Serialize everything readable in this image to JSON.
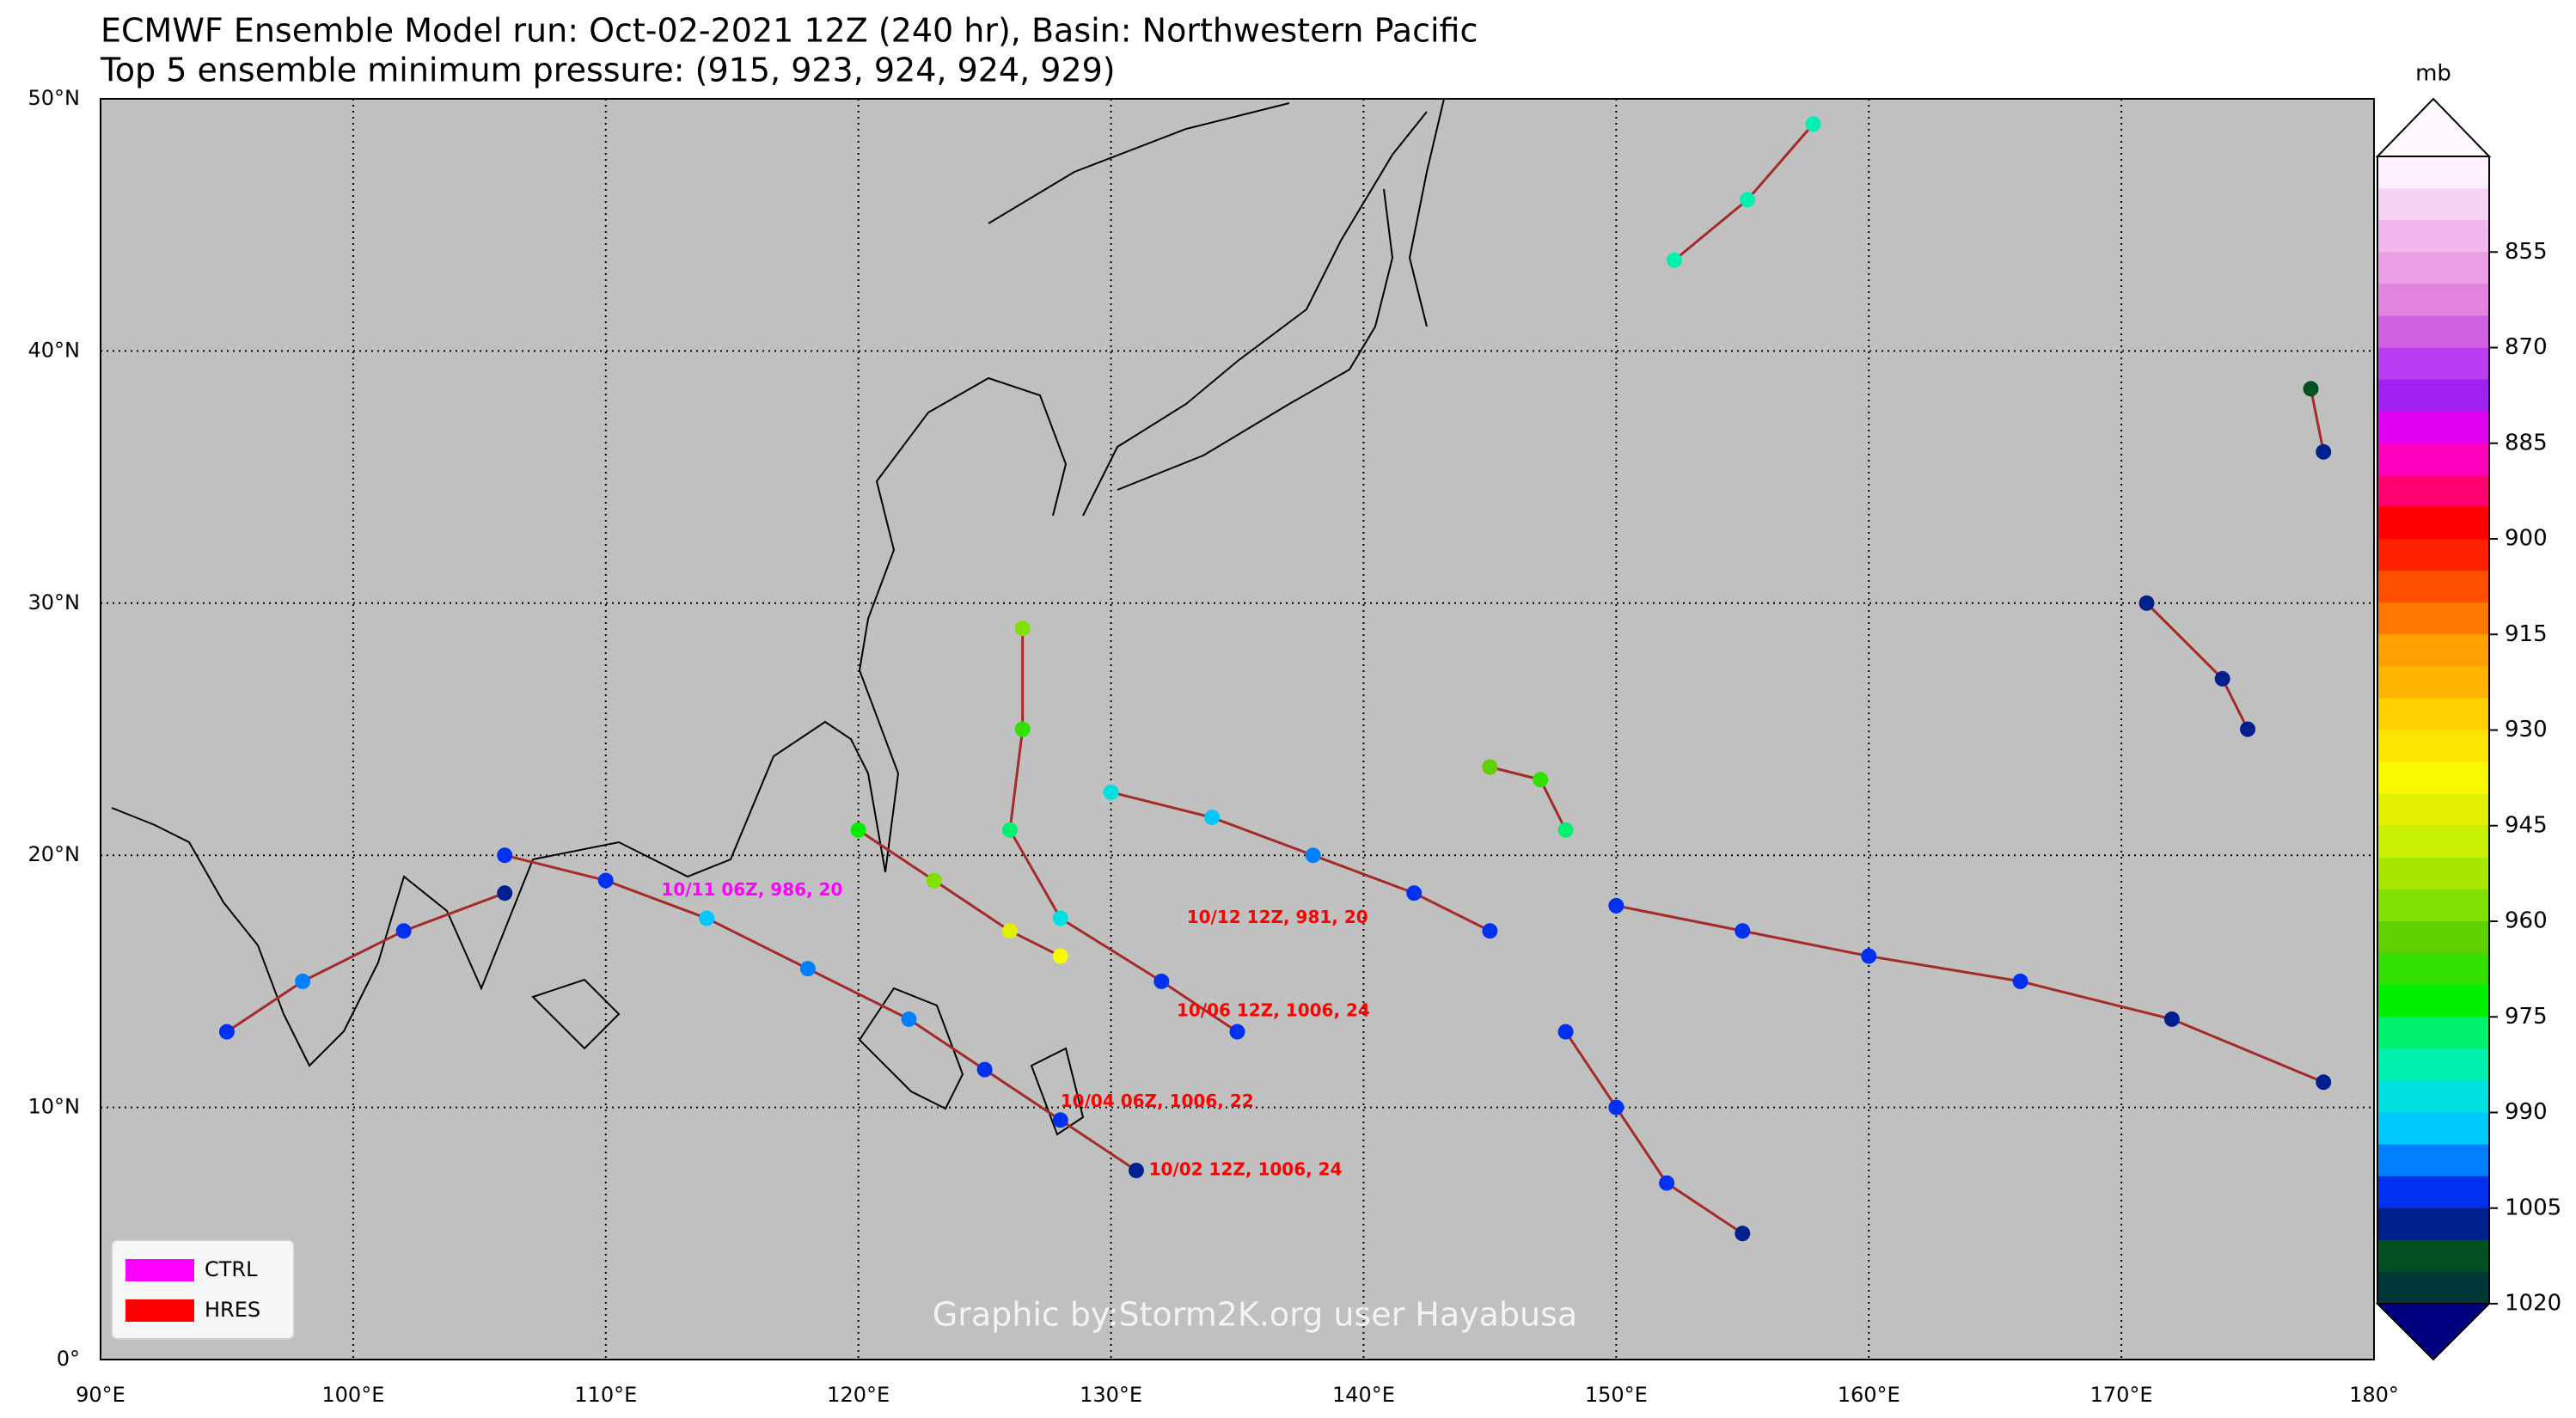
{
  "title": "ECMWF Ensemble Model run: Oct-02-2021 12Z (240 hr), Basin: Northwestern Pacific",
  "subtitle": "Top 5 ensemble minimum pressure: (915, 923, 924, 924, 929)",
  "watermark": "Graphic by:Storm2K.org user Hayabusa",
  "map": {
    "xlim": [
      90,
      180
    ],
    "ylim": [
      0,
      50
    ],
    "xticks": [
      {
        "value": 90,
        "label": "90°E"
      },
      {
        "value": 100,
        "label": "100°E"
      },
      {
        "value": 110,
        "label": "110°E"
      },
      {
        "value": 120,
        "label": "120°E"
      },
      {
        "value": 130,
        "label": "130°E"
      },
      {
        "value": 140,
        "label": "140°E"
      },
      {
        "value": 150,
        "label": "150°E"
      },
      {
        "value": 160,
        "label": "160°E"
      },
      {
        "value": 170,
        "label": "170°E"
      },
      {
        "value": 180,
        "label": "180°"
      }
    ],
    "yticks": [
      {
        "value": 0,
        "label": "0°"
      },
      {
        "value": 10,
        "label": "10°N"
      },
      {
        "value": 20,
        "label": "20°N"
      },
      {
        "value": 30,
        "label": "30°N"
      },
      {
        "value": 40,
        "label": "40°N"
      },
      {
        "value": 50,
        "label": "50°N"
      }
    ],
    "track_color": "#a52a2a",
    "tracks": [
      [
        [
          152.3,
          43.6,
          982
        ],
        [
          155.2,
          46.0,
          982
        ],
        [
          157.8,
          49.0,
          982
        ]
      ],
      [
        [
          131,
          7.5,
          1006
        ],
        [
          128,
          9.5,
          1004
        ],
        [
          125,
          11.5,
          1000
        ],
        [
          122,
          13.5,
          998
        ],
        [
          118,
          15.5,
          996
        ],
        [
          114,
          17.5,
          994
        ],
        [
          110,
          19,
          1000
        ],
        [
          106,
          20,
          1004
        ]
      ],
      [
        [
          135,
          13,
          1004
        ],
        [
          132,
          15,
          1000
        ],
        [
          128,
          17.5,
          985
        ],
        [
          126,
          21,
          975
        ],
        [
          126.5,
          25,
          965
        ],
        [
          126.5,
          29,
          955
        ]
      ],
      [
        [
          145,
          17,
          1004
        ],
        [
          142,
          18.5,
          1000
        ],
        [
          138,
          20,
          995
        ],
        [
          134,
          21.5,
          990
        ],
        [
          130,
          22.5,
          986
        ]
      ],
      [
        [
          145,
          23.5,
          962
        ],
        [
          147,
          23,
          965
        ],
        [
          148,
          21,
          975
        ]
      ],
      [
        [
          178,
          11,
          1006
        ],
        [
          172,
          13.5,
          1006
        ],
        [
          166,
          15,
          1004
        ],
        [
          160,
          16,
          1002
        ],
        [
          155,
          17,
          1000
        ],
        [
          150,
          18,
          1004
        ]
      ],
      [
        [
          178,
          36,
          1008
        ],
        [
          177.5,
          38.5,
          1010
        ]
      ],
      [
        [
          95,
          13,
          1000
        ],
        [
          98,
          15,
          996
        ],
        [
          102,
          17,
          1004
        ],
        [
          106,
          18.5,
          1006
        ]
      ],
      [
        [
          171,
          30,
          1008
        ],
        [
          174,
          27,
          1008
        ],
        [
          175,
          25,
          1008
        ]
      ],
      [
        [
          155,
          5,
          1006
        ],
        [
          152,
          7,
          1004
        ],
        [
          150,
          10,
          1002
        ],
        [
          148,
          13,
          1000
        ]
      ],
      [
        [
          120,
          21,
          970
        ],
        [
          123,
          19,
          955
        ],
        [
          126,
          17,
          940
        ],
        [
          128,
          16,
          935
        ]
      ]
    ],
    "annotations": [
      {
        "text": "10/02 12Z, 1006, 24",
        "lon": 131.5,
        "lat": 7.5,
        "color": "#ff0000"
      },
      {
        "text": "10/04 06Z, 1006, 22",
        "lon": 128,
        "lat": 10.2,
        "color": "#ff0000"
      },
      {
        "text": "10/06 12Z, 1006, 24",
        "lon": 132.6,
        "lat": 13.8,
        "color": "#ff0000"
      },
      {
        "text": "10/11 06Z, 986, 20",
        "lon": 112.2,
        "lat": 18.6,
        "color": "#ff00ff"
      },
      {
        "text": "10/12 12Z, 981, 20",
        "lon": 133,
        "lat": 17.5,
        "color": "#ff0000"
      }
    ]
  },
  "colorbar": {
    "label": "mb",
    "lim": [
      840,
      1020
    ],
    "ticks": [
      855,
      870,
      885,
      900,
      915,
      930,
      945,
      960,
      975,
      990,
      1005,
      1020
    ],
    "colors": [
      "#fff0ff",
      "#f9d3f5",
      "#f2b8ee",
      "#eb9de6",
      "#e482e0",
      "#d060e0",
      "#b83cf0",
      "#a020f0",
      "#e000f0",
      "#ff00c0",
      "#ff0070",
      "#ff0000",
      "#ff2000",
      "#ff5000",
      "#ff7800",
      "#ffa000",
      "#ffb400",
      "#ffd000",
      "#ffe600",
      "#f8f800",
      "#e0f000",
      "#c8f000",
      "#a8e800",
      "#80e000",
      "#60d000",
      "#30e000",
      "#00f000",
      "#00f070",
      "#00f0b0",
      "#00e0e0",
      "#00c8ff",
      "#0080ff",
      "#0030f0",
      "#002090",
      "#005020",
      "#003838"
    ],
    "under_color": "#000080",
    "over_color": "#fff8ff"
  },
  "legend": [
    {
      "name": "CTRL",
      "color": "#ff00ff"
    },
    {
      "name": "HRES",
      "color": "#ff0000"
    }
  ]
}
